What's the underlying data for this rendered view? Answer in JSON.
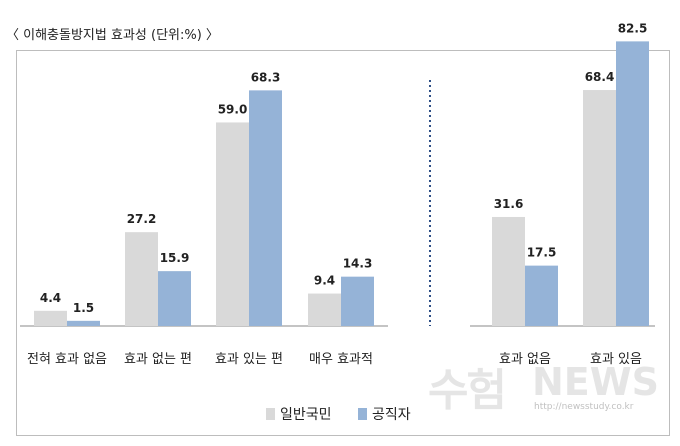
{
  "title": "〈 이해충돌방지법 효과성 (단위:%) 〉",
  "watermark": {
    "brand_ko": "수험",
    "brand_en": "NEWS",
    "url": "http://newsstudy.co.kr"
  },
  "colors": {
    "general": "#d9d9d9",
    "official": "#95b3d7",
    "divider": "#2e4f86",
    "axis": "#888888"
  },
  "chart_data": [
    {
      "type": "bar",
      "categories": [
        "전혀 효과 없음",
        "효과 없는 편",
        "효과 있는 편",
        "매우 효과적"
      ],
      "series": [
        {
          "name": "일반국민",
          "values": [
            4.4,
            27.2,
            59.0,
            9.4
          ],
          "labels": [
            "4.4",
            "27.2",
            "59.0",
            "9.4"
          ]
        },
        {
          "name": "공직자",
          "values": [
            1.5,
            15.9,
            68.3,
            14.3
          ],
          "labels": [
            "1.5",
            "15.9",
            "68.3",
            "14.3"
          ]
        }
      ],
      "ylim": [
        0,
        90
      ],
      "grid": false,
      "legend": "bottom"
    },
    {
      "type": "bar",
      "categories": [
        "효과 없음",
        "효과 있음"
      ],
      "series": [
        {
          "name": "일반국민",
          "values": [
            31.6,
            68.4
          ],
          "labels": [
            "31.6",
            "68.4"
          ]
        },
        {
          "name": "공직자",
          "values": [
            17.5,
            82.5
          ],
          "labels": [
            "17.5",
            "82.5"
          ]
        }
      ],
      "ylim": [
        0,
        90
      ],
      "grid": false,
      "legend": "bottom"
    }
  ]
}
